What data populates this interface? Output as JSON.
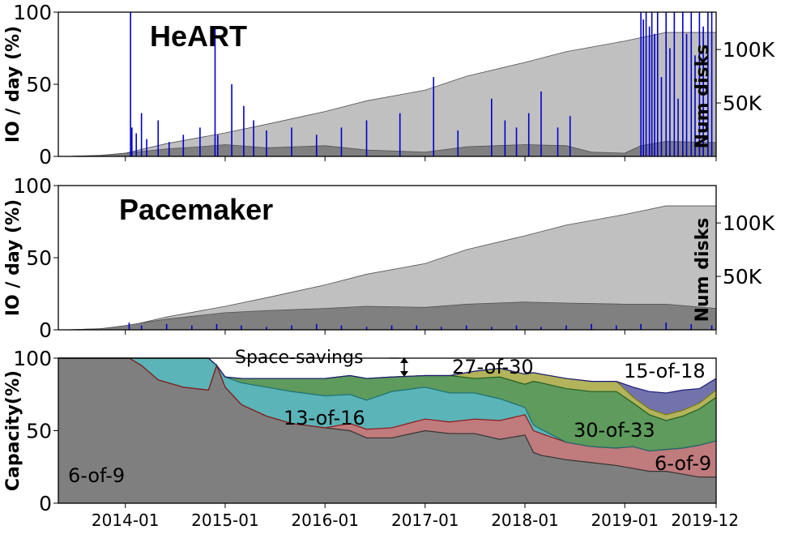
{
  "chart_data": [
    {
      "type": "area",
      "title": "HeART",
      "ylabel": "IO / day (%)",
      "ylabel_right": "Num disks",
      "ylim": [
        0,
        100
      ],
      "yticks": [
        "0",
        "50",
        "100"
      ],
      "right_ticks": [
        {
          "label": "50K",
          "value": 50000
        },
        {
          "label": "100K",
          "value": 100000
        }
      ],
      "right_ylim": [
        0,
        135000
      ],
      "xlim": [
        "2013-05-01",
        "2019-12-01"
      ],
      "xticks": [
        "2014-01",
        "2015-01",
        "2016-01",
        "2017-01",
        "2018-01",
        "2019-01",
        "2019-12"
      ],
      "series": [
        {
          "kind": "total_disks",
          "color": "#c0c0c0",
          "x": [
            "2013-06-01",
            "2013-10-01",
            "2014-01-01",
            "2014-06-01",
            "2015-01-01",
            "2015-06-01",
            "2016-01-01",
            "2016-06-01",
            "2017-01-01",
            "2017-06-01",
            "2018-01-01",
            "2018-06-01",
            "2019-01-01",
            "2019-06-01",
            "2019-12-01"
          ],
          "y": [
            0,
            1000,
            3000,
            12000,
            22000,
            30000,
            42000,
            52000,
            62000,
            75000,
            88000,
            98000,
            108000,
            116000,
            116000
          ]
        },
        {
          "kind": "disks_in_transition",
          "color": "#808080",
          "x": [
            "2013-06-01",
            "2013-10-01",
            "2014-01-01",
            "2014-06-01",
            "2014-10-01",
            "2015-01-01",
            "2015-06-01",
            "2016-01-01",
            "2016-06-01",
            "2017-01-01",
            "2017-06-01",
            "2018-01-01",
            "2018-06-01",
            "2018-09-01",
            "2019-01-01",
            "2019-03-01",
            "2019-06-01",
            "2019-12-01"
          ],
          "y": [
            0,
            800,
            3000,
            7000,
            9000,
            11000,
            8000,
            10000,
            6000,
            4000,
            9000,
            11000,
            10000,
            4000,
            3000,
            10000,
            14000,
            13000
          ]
        },
        {
          "kind": "io_spikes",
          "color": "#0000cc",
          "x": [
            "2014-01-20",
            "2014-01-25",
            "2014-02-10",
            "2014-03-01",
            "2014-03-20",
            "2014-05-01",
            "2014-06-10",
            "2014-08-01",
            "2014-10-01",
            "2014-11-25",
            "2014-12-05",
            "2015-01-25",
            "2015-03-10",
            "2015-04-15",
            "2015-06-01",
            "2015-09-01",
            "2015-12-01",
            "2016-03-01",
            "2016-06-01",
            "2016-10-01",
            "2017-02-01",
            "2017-05-01",
            "2017-09-01",
            "2017-10-20",
            "2017-12-01",
            "2018-01-15",
            "2018-03-01",
            "2018-05-01",
            "2018-06-15",
            "2019-03-01",
            "2019-03-10",
            "2019-03-20",
            "2019-04-01",
            "2019-04-10",
            "2019-04-20",
            "2019-05-01",
            "2019-05-15",
            "2019-06-01",
            "2019-06-15",
            "2019-07-01",
            "2019-07-15",
            "2019-08-01",
            "2019-08-15",
            "2019-09-01",
            "2019-09-15",
            "2019-10-01",
            "2019-10-15",
            "2019-11-01",
            "2019-11-15"
          ],
          "y": [
            100,
            20,
            16,
            30,
            12,
            25,
            10,
            15,
            20,
            90,
            15,
            50,
            35,
            25,
            18,
            20,
            15,
            20,
            25,
            30,
            55,
            18,
            40,
            25,
            20,
            30,
            45,
            20,
            28,
            100,
            95,
            100,
            90,
            100,
            85,
            100,
            55,
            100,
            75,
            100,
            40,
            100,
            85,
            100,
            70,
            100,
            90,
            100,
            100
          ]
        }
      ]
    },
    {
      "type": "area",
      "title": "Pacemaker",
      "ylabel": "IO / day (%)",
      "ylabel_right": "Num disks",
      "ylim": [
        0,
        100
      ],
      "yticks": [
        "0",
        "50",
        "100"
      ],
      "right_ticks": [
        {
          "label": "50K",
          "value": 50000
        },
        {
          "label": "100K",
          "value": 100000
        }
      ],
      "right_ylim": [
        0,
        135000
      ],
      "xlim": [
        "2013-05-01",
        "2019-12-01"
      ],
      "xticks": [
        "2014-01",
        "2015-01",
        "2016-01",
        "2017-01",
        "2018-01",
        "2019-01",
        "2019-12"
      ],
      "series": [
        {
          "kind": "total_disks",
          "color": "#c0c0c0",
          "x": [
            "2013-06-01",
            "2013-10-01",
            "2014-01-01",
            "2014-06-01",
            "2015-01-01",
            "2015-06-01",
            "2016-01-01",
            "2016-06-01",
            "2017-01-01",
            "2017-06-01",
            "2018-01-01",
            "2018-06-01",
            "2019-01-01",
            "2019-06-01",
            "2019-12-01"
          ],
          "y": [
            0,
            1000,
            3000,
            12000,
            22000,
            30000,
            42000,
            52000,
            62000,
            75000,
            88000,
            98000,
            108000,
            116000,
            116000
          ]
        },
        {
          "kind": "disks_in_transition",
          "color": "#808080",
          "x": [
            "2013-06-01",
            "2013-10-01",
            "2014-01-01",
            "2014-06-01",
            "2015-01-01",
            "2015-06-01",
            "2016-01-01",
            "2016-06-01",
            "2017-01-01",
            "2017-06-01",
            "2018-01-01",
            "2018-06-01",
            "2019-01-01",
            "2019-06-01",
            "2019-12-01"
          ],
          "y": [
            0,
            1000,
            4000,
            10000,
            16000,
            18000,
            20000,
            22000,
            21000,
            24000,
            26000,
            25000,
            24000,
            24000,
            20000
          ]
        },
        {
          "kind": "io_spikes",
          "color": "#0000cc",
          "x": [
            "2014-01-15",
            "2014-03-01",
            "2014-06-01",
            "2014-09-01",
            "2014-12-01",
            "2015-03-01",
            "2015-06-01",
            "2015-09-01",
            "2015-12-01",
            "2016-03-01",
            "2016-06-01",
            "2016-09-01",
            "2016-12-01",
            "2017-03-01",
            "2017-06-01",
            "2017-09-01",
            "2017-12-01",
            "2018-03-01",
            "2018-06-01",
            "2018-09-01",
            "2018-12-01",
            "2019-03-01",
            "2019-06-01",
            "2019-09-01",
            "2019-11-15"
          ],
          "y": [
            5,
            3,
            4,
            3,
            4,
            3,
            2,
            3,
            4,
            3,
            2,
            3,
            3,
            2,
            3,
            2,
            3,
            2,
            3,
            4,
            3,
            4,
            5,
            4,
            3
          ]
        }
      ]
    },
    {
      "type": "area",
      "ylabel": "Capacity(%)",
      "ylim": [
        0,
        100
      ],
      "yticks": [
        "0",
        "50",
        "100"
      ],
      "xlim": [
        "2013-05-01",
        "2019-12-01"
      ],
      "xticks": [
        "2014-01",
        "2015-01",
        "2016-01",
        "2017-01",
        "2018-01",
        "2019-01",
        "2019-12"
      ],
      "x": [
        "2013-05-01",
        "2013-12-01",
        "2014-01-15",
        "2014-03-01",
        "2014-05-01",
        "2014-08-01",
        "2014-11-01",
        "2014-12-01",
        "2015-01-01",
        "2015-03-01",
        "2015-06-01",
        "2015-09-01",
        "2016-01-01",
        "2016-04-01",
        "2016-06-01",
        "2016-09-01",
        "2017-01-01",
        "2017-04-01",
        "2017-07-01",
        "2017-10-01",
        "2018-01-01",
        "2018-02-01",
        "2018-03-01",
        "2018-06-01",
        "2018-09-01",
        "2018-12-01",
        "2019-02-01",
        "2019-04-01",
        "2019-06-01",
        "2019-08-01",
        "2019-10-01",
        "2019-12-01"
      ],
      "series": [
        {
          "name": "6-of-9",
          "color": "#7f7f7f",
          "values": [
            100,
            100,
            100,
            95,
            85,
            80,
            78,
            95,
            80,
            68,
            60,
            55,
            52,
            50,
            45,
            45,
            50,
            48,
            48,
            44,
            47,
            35,
            33,
            30,
            28,
            26,
            24,
            22,
            22,
            20,
            18,
            18
          ]
        },
        {
          "name": "6-of-9",
          "color": "#c07b7d",
          "values": [
            0,
            0,
            0,
            0,
            0,
            0,
            0,
            0,
            0,
            0,
            0,
            0,
            0,
            5,
            6,
            7,
            8,
            8,
            10,
            13,
            14,
            15,
            15,
            12,
            11,
            12,
            15,
            14,
            15,
            18,
            22,
            25
          ]
        },
        {
          "name": "13-of-16",
          "color": "#5bb4b8",
          "values": [
            0,
            0,
            0,
            5,
            15,
            20,
            22,
            0,
            7,
            15,
            20,
            22,
            22,
            20,
            20,
            25,
            22,
            20,
            18,
            15,
            5,
            4,
            3,
            0,
            0,
            0,
            0,
            0,
            0,
            0,
            0,
            0
          ]
        },
        {
          "name": "30-of-33",
          "color": "#5e9b5c",
          "values": [
            0,
            0,
            0,
            0,
            0,
            0,
            0,
            0,
            0,
            3,
            6,
            9,
            12,
            13,
            15,
            10,
            8,
            12,
            10,
            15,
            16,
            30,
            32,
            37,
            38,
            39,
            30,
            25,
            20,
            22,
            25,
            30
          ]
        },
        {
          "name": "27-of-30",
          "color": "#b3b35c",
          "values": [
            0,
            0,
            0,
            0,
            0,
            0,
            0,
            0,
            0,
            0,
            0,
            0,
            0,
            0,
            0,
            0,
            0,
            0,
            5,
            6,
            7,
            6,
            6,
            7,
            7,
            7,
            4,
            4,
            4,
            4,
            4,
            5
          ]
        },
        {
          "name": "15-of-18",
          "color": "#7272ac",
          "values": [
            0,
            0,
            0,
            0,
            0,
            0,
            0,
            0,
            0,
            0,
            0,
            0,
            0,
            0,
            0,
            0,
            0,
            0,
            0,
            0,
            0,
            0,
            0,
            0,
            0,
            0,
            7,
            12,
            15,
            14,
            10,
            8
          ]
        }
      ],
      "annotation": "Space-savings"
    }
  ]
}
